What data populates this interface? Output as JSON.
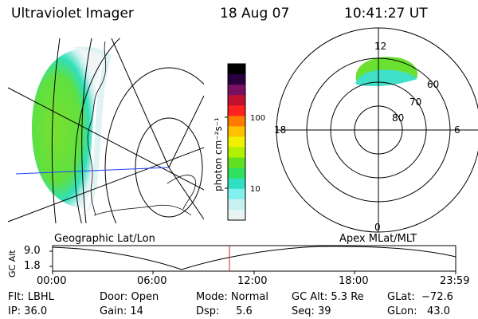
{
  "header": {
    "title": "Ultraviolet Imager",
    "date": "18 Aug 07",
    "time": "10:41:27 UT"
  },
  "colorbar": {
    "label": "photon cm⁻²s⁻¹",
    "ticks": [
      "100",
      "10"
    ],
    "colors": [
      "#000000",
      "#2a0040",
      "#7a1060",
      "#c01030",
      "#ff2020",
      "#ff7a00",
      "#ffc000",
      "#f0f000",
      "#b0f000",
      "#60e020",
      "#30e060",
      "#30e0c0",
      "#80f0f0",
      "#c8f0f0",
      "#e8f4f4"
    ]
  },
  "polar": {
    "mlt_labels": {
      "top": "12",
      "left": "18",
      "right": "6",
      "bottom": "0"
    },
    "lat_labels": [
      "60",
      "70",
      "80"
    ]
  },
  "panels": {
    "left_title": "Geographic Lat/Lon",
    "right_title": "Apex  MLat/MLT"
  },
  "timeline": {
    "ylabel": "GC Alt",
    "yticks": [
      "9.0",
      "1.8"
    ],
    "xticks": [
      "00:00",
      "06:00",
      "12:00",
      "18:00",
      "23:59"
    ],
    "marker_color": "#d02020"
  },
  "status": {
    "filter": "Flt: LBHL",
    "ip": "IP: 36.0",
    "door": "Door: Open",
    "gain": "Gain: 14",
    "mode": "Mode: Normal",
    "dsp": "Dsp:     5.6",
    "gc_alt": "GC Alt: 5.3 Re",
    "seq": "Seq: 39",
    "glat": "GLat:  −72.6",
    "glon": "GLon:   43.0"
  }
}
